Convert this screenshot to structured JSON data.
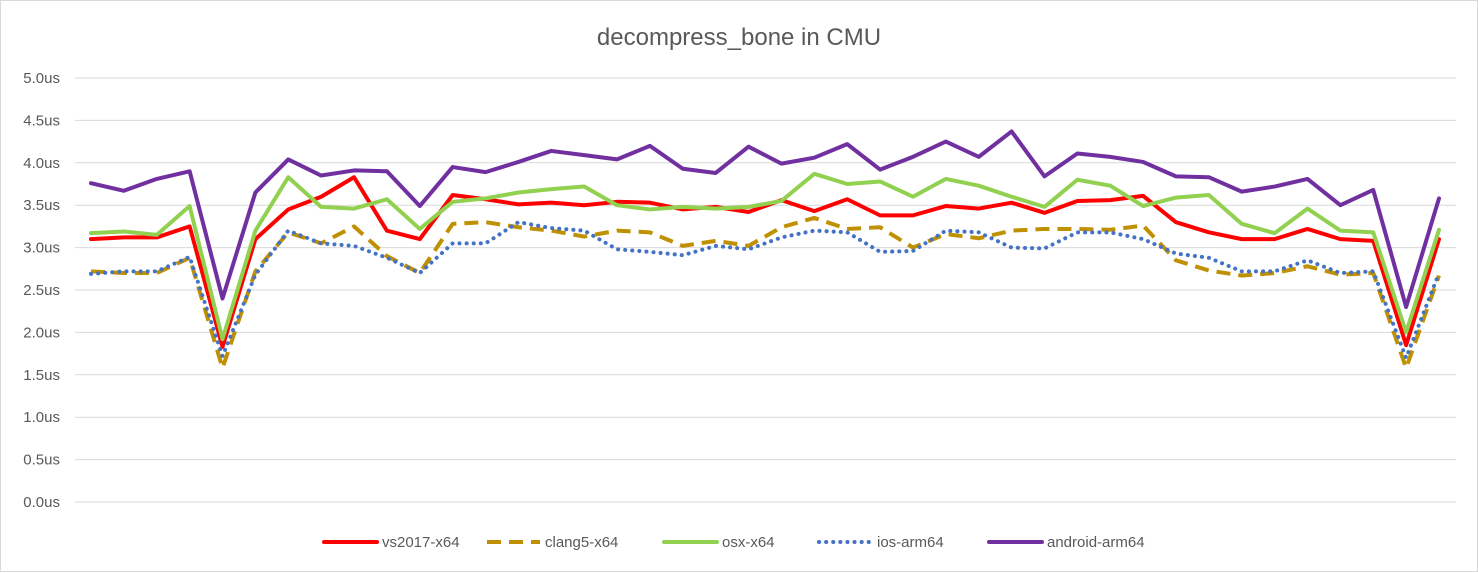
{
  "chart_data": {
    "type": "line",
    "title": "decompress_bone  in CMU",
    "xlabel": "",
    "ylabel": "",
    "ylim": [
      0,
      5
    ],
    "yticks": [
      "0.0us",
      "0.5us",
      "1.0us",
      "1.5us",
      "2.0us",
      "2.5us",
      "3.0us",
      "3.5us",
      "4.0us",
      "4.5us",
      "5.0us"
    ],
    "grid": true,
    "legend_position": "bottom",
    "x": [
      1,
      2,
      3,
      4,
      5,
      6,
      7,
      8,
      9,
      10,
      11,
      12,
      13,
      14,
      15,
      16,
      17,
      18,
      19,
      20,
      21,
      22,
      23,
      24,
      25,
      26,
      27,
      28,
      29,
      30,
      31,
      32,
      33,
      34,
      35,
      36,
      37,
      38,
      39,
      40,
      41,
      42
    ],
    "series": [
      {
        "name": "vs2017-x64",
        "color": "#ff0000",
        "dash": "solid",
        "values": [
          3.1,
          3.12,
          3.12,
          3.25,
          1.83,
          3.1,
          3.45,
          3.6,
          3.83,
          3.2,
          3.1,
          3.62,
          3.57,
          3.51,
          3.53,
          3.5,
          3.54,
          3.53,
          3.45,
          3.48,
          3.42,
          3.56,
          3.43,
          3.57,
          3.38,
          3.38,
          3.49,
          3.46,
          3.53,
          3.41,
          3.55,
          3.56,
          3.61,
          3.3,
          3.18,
          3.1,
          3.1,
          3.22,
          3.1,
          3.08,
          1.85,
          3.1
        ]
      },
      {
        "name": "clang5-x64",
        "color": "#bf9000",
        "dash": "dashed",
        "values": [
          2.72,
          2.7,
          2.7,
          2.88,
          1.58,
          2.72,
          3.18,
          3.05,
          3.25,
          2.9,
          2.7,
          3.28,
          3.3,
          3.24,
          3.2,
          3.13,
          3.2,
          3.18,
          3.02,
          3.08,
          3.02,
          3.24,
          3.35,
          3.22,
          3.24,
          3.0,
          3.16,
          3.11,
          3.2,
          3.22,
          3.22,
          3.21,
          3.26,
          2.85,
          2.73,
          2.67,
          2.7,
          2.78,
          2.68,
          2.7,
          1.58,
          2.67
        ]
      },
      {
        "name": "osx-x64",
        "color": "#92d050",
        "dash": "solid",
        "values": [
          3.17,
          3.19,
          3.15,
          3.49,
          1.92,
          3.2,
          3.83,
          3.48,
          3.46,
          3.57,
          3.22,
          3.54,
          3.58,
          3.65,
          3.69,
          3.72,
          3.5,
          3.45,
          3.48,
          3.46,
          3.48,
          3.55,
          3.87,
          3.75,
          3.78,
          3.6,
          3.81,
          3.73,
          3.6,
          3.48,
          3.8,
          3.73,
          3.49,
          3.59,
          3.62,
          3.28,
          3.17,
          3.46,
          3.2,
          3.18,
          2.0,
          3.21
        ]
      },
      {
        "name": "ios-arm64",
        "color": "#4472c4",
        "dash": "dotted",
        "values": [
          2.69,
          2.72,
          2.72,
          2.89,
          1.72,
          2.68,
          3.2,
          3.05,
          3.02,
          2.88,
          2.7,
          3.05,
          3.05,
          3.3,
          3.23,
          3.2,
          2.98,
          2.95,
          2.91,
          3.02,
          2.98,
          3.12,
          3.2,
          3.18,
          2.95,
          2.96,
          3.2,
          3.18,
          3.0,
          2.99,
          3.18,
          3.18,
          3.1,
          2.93,
          2.88,
          2.72,
          2.72,
          2.85,
          2.7,
          2.72,
          1.7,
          2.7
        ]
      },
      {
        "name": "android-arm64",
        "color": "#7030a0",
        "dash": "solid",
        "values": [
          3.76,
          3.67,
          3.81,
          3.9,
          2.4,
          3.65,
          4.04,
          3.85,
          3.91,
          3.9,
          3.49,
          3.95,
          3.89,
          4.01,
          4.14,
          4.09,
          4.04,
          4.2,
          3.93,
          3.88,
          4.19,
          3.99,
          4.06,
          4.22,
          3.92,
          4.07,
          4.25,
          4.07,
          4.37,
          3.84,
          4.11,
          4.07,
          4.01,
          3.84,
          3.83,
          3.66,
          3.72,
          3.81,
          3.5,
          3.68,
          2.3,
          3.58
        ]
      }
    ]
  }
}
